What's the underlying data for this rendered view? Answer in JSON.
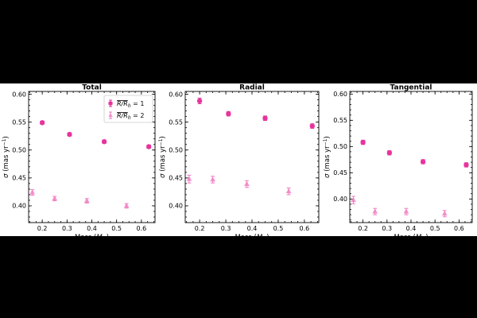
{
  "chart_data": [
    {
      "type": "scatter",
      "title": "Total",
      "xlabel": "Mass (M_⊙)",
      "ylabel": "σ (mas yr⁻¹)",
      "xlim": [
        0.145,
        0.655
      ],
      "ylim": [
        0.37,
        0.605
      ],
      "x_ticks": [
        "0.2",
        "0.3",
        "0.4",
        "0.5",
        "0.6"
      ],
      "y_ticks": [
        "0.40",
        "0.45",
        "0.50",
        "0.55",
        "0.60"
      ],
      "legend": {
        "position": "top-right",
        "entries": [
          "R/R_h = 1",
          "R/R_h = 2"
        ]
      },
      "series": [
        {
          "name": "R/R_h = 1",
          "marker": "hexagon",
          "x": [
            0.2,
            0.31,
            0.45,
            0.63
          ],
          "y": [
            0.549,
            0.528,
            0.515,
            0.506
          ],
          "err": [
            0.003,
            0.003,
            0.003,
            0.003
          ]
        },
        {
          "name": "R/R_h = 2",
          "marker": "triangle",
          "x": [
            0.16,
            0.25,
            0.38,
            0.54
          ],
          "y": [
            0.424,
            0.413,
            0.409,
            0.4
          ],
          "err": [
            0.005,
            0.004,
            0.004,
            0.004
          ]
        }
      ]
    },
    {
      "type": "scatter",
      "title": "Radial",
      "xlabel": "Mass (M_⊙)",
      "ylabel": "σ (mas yr⁻¹)",
      "xlim": [
        0.145,
        0.655
      ],
      "ylim": [
        0.37,
        0.605
      ],
      "x_ticks": [
        "0.2",
        "0.3",
        "0.4",
        "0.5",
        "0.6"
      ],
      "y_ticks": [
        "0.40",
        "0.45",
        "0.50",
        "0.55",
        "0.60"
      ],
      "series": [
        {
          "name": "R/R_h = 1",
          "marker": "hexagon",
          "x": [
            0.2,
            0.31,
            0.45,
            0.63
          ],
          "y": [
            0.588,
            0.565,
            0.557,
            0.543
          ],
          "err": [
            0.005,
            0.004,
            0.004,
            0.004
          ]
        },
        {
          "name": "R/R_h = 2",
          "marker": "triangle",
          "x": [
            0.16,
            0.25,
            0.38,
            0.54
          ],
          "y": [
            0.448,
            0.447,
            0.439,
            0.426
          ],
          "err": [
            0.007,
            0.006,
            0.006,
            0.006
          ]
        }
      ]
    },
    {
      "type": "scatter",
      "title": "Tangential",
      "xlabel": "Mass (M_⊙)",
      "ylabel": "σ (mas yr⁻¹)",
      "xlim": [
        0.145,
        0.655
      ],
      "ylim": [
        0.355,
        0.605
      ],
      "x_ticks": [
        "0.2",
        "0.3",
        "0.4",
        "0.5",
        "0.6"
      ],
      "y_ticks": [
        "0.40",
        "0.45",
        "0.50",
        "0.55",
        "0.60"
      ],
      "series": [
        {
          "name": "R/R_h = 1",
          "marker": "hexagon",
          "x": [
            0.2,
            0.31,
            0.45,
            0.63
          ],
          "y": [
            0.508,
            0.488,
            0.471,
            0.465
          ],
          "err": [
            0.004,
            0.004,
            0.004,
            0.004
          ]
        },
        {
          "name": "R/R_h = 2",
          "marker": "triangle",
          "x": [
            0.16,
            0.25,
            0.38,
            0.54
          ],
          "y": [
            0.398,
            0.376,
            0.376,
            0.372
          ],
          "err": [
            0.007,
            0.006,
            0.006,
            0.006
          ]
        }
      ]
    }
  ],
  "colors": {
    "rh1": "#e8339c",
    "rh2": "#f07cc0"
  }
}
